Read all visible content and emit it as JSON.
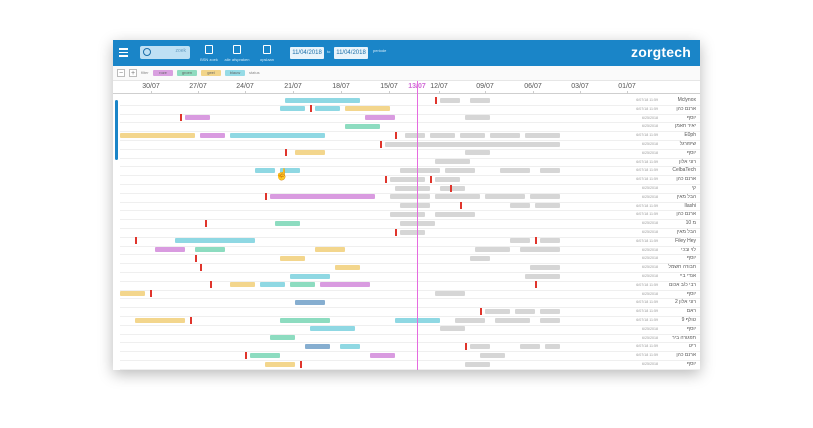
{
  "header": {
    "logo": "zorgtech",
    "search_placeholder": "zoek",
    "buttons": [
      {
        "label": "BSN zoek",
        "icon": "export-icon"
      },
      {
        "label": "alle afspraken",
        "icon": "expand-icon"
      },
      {
        "label": "opslaan",
        "icon": "save-icon"
      }
    ],
    "date_from": "11/04/2018",
    "date_sep": "to",
    "date_to": "11/04/2018",
    "date_caption": "periode"
  },
  "legend": {
    "zoom_out": "−",
    "zoom_in": "+",
    "label_left": "filter",
    "label_right": "status",
    "items": [
      {
        "name": "roze",
        "color": "#d9a0e0"
      },
      {
        "name": "groen",
        "color": "#8fdcc0"
      },
      {
        "name": "geel",
        "color": "#f2d58a"
      },
      {
        "name": "blauw",
        "color": "#96dbe6"
      }
    ]
  },
  "axis": {
    "today_index": 7,
    "ticks": [
      "30/07",
      "27/07",
      "24/07",
      "21/07",
      "18/07",
      "15/07",
      "13/07",
      "12/07",
      "09/07",
      "06/07",
      "03/07",
      "01/07"
    ]
  },
  "colors": {
    "blue": "#8fd8e3",
    "pink": "#d99be0",
    "yellow": "#f3d68d",
    "green": "#8ddcc0",
    "gray": "#d6d6d6",
    "navy": "#86aed0"
  },
  "rows": [
    {
      "name": "Mclynox",
      "date": "6/07/18 11:59",
      "bars": [
        [
          "blue",
          0.33,
          0.48
        ],
        [
          "gray",
          0.64,
          0.68
        ],
        [
          "gray",
          0.7,
          0.74
        ]
      ],
      "marks": [
        0.63
      ]
    },
    {
      "name": "ארנם כהן",
      "date": "6/07/18 11:59",
      "bars": [
        [
          "blue",
          0.32,
          0.37
        ],
        [
          "blue",
          0.39,
          0.44
        ],
        [
          "yellow",
          0.45,
          0.54
        ]
      ],
      "marks": [
        0.38
      ]
    },
    {
      "name": "יוסף",
      "date": "6/25/2018",
      "bars": [
        [
          "pink",
          0.13,
          0.18
        ],
        [
          "pink",
          0.49,
          0.55
        ],
        [
          "gray",
          0.69,
          0.74
        ]
      ],
      "marks": [
        0.12
      ]
    },
    {
      "name": "יאיר חאמן",
      "date": "6/25/2018",
      "bars": [
        [
          "green",
          0.45,
          0.52
        ]
      ],
      "marks": []
    },
    {
      "name": "E0ph",
      "date": "6/07/18 11:59",
      "bars": [
        [
          "yellow",
          0.0,
          0.15
        ],
        [
          "pink",
          0.16,
          0.21
        ],
        [
          "blue",
          0.22,
          0.41
        ],
        [
          "gray",
          0.57,
          0.61
        ],
        [
          "gray",
          0.62,
          0.67
        ],
        [
          "gray",
          0.68,
          0.73
        ],
        [
          "gray",
          0.74,
          0.8
        ],
        [
          "gray",
          0.81,
          0.88
        ]
      ],
      "marks": [
        0.55
      ]
    },
    {
      "name": "שיפורגל",
      "date": "6/25/2018",
      "bars": [
        [
          "gray",
          0.53,
          0.88
        ]
      ],
      "marks": [
        0.52
      ]
    },
    {
      "name": "יוסף",
      "date": "6/25/2018",
      "bars": [
        [
          "yellow",
          0.35,
          0.41
        ],
        [
          "gray",
          0.69,
          0.74
        ]
      ],
      "marks": [
        0.33
      ]
    },
    {
      "name": "רוני אלון",
      "date": "6/07/18 11:59",
      "bars": [
        [
          "gray",
          0.63,
          0.7
        ]
      ],
      "marks": []
    },
    {
      "name": "CelbaTech",
      "date": "6/07/18 11:59",
      "bars": [
        [
          "blue",
          0.27,
          0.31
        ],
        [
          "blue",
          0.32,
          0.36
        ],
        [
          "gray",
          0.56,
          0.64
        ],
        [
          "gray",
          0.65,
          0.71
        ],
        [
          "gray",
          0.76,
          0.82
        ],
        [
          "gray",
          0.84,
          0.88
        ]
      ],
      "marks": []
    },
    {
      "name": "ארנם כהן",
      "date": "6/07/18 11:59",
      "bars": [
        [
          "gray",
          0.54,
          0.61
        ],
        [
          "gray",
          0.63,
          0.68
        ]
      ],
      "marks": [
        0.53,
        0.62
      ]
    },
    {
      "name": "קי",
      "date": "6/25/2018",
      "bars": [
        [
          "gray",
          0.55,
          0.62
        ],
        [
          "gray",
          0.64,
          0.69
        ]
      ],
      "marks": [
        0.66
      ]
    },
    {
      "name": "הבל מאין",
      "date": "6/25/2018",
      "bars": [
        [
          "pink",
          0.3,
          0.51
        ],
        [
          "gray",
          0.54,
          0.62
        ],
        [
          "gray",
          0.63,
          0.72
        ],
        [
          "gray",
          0.73,
          0.81
        ],
        [
          "gray",
          0.82,
          0.88
        ]
      ],
      "marks": [
        0.29
      ]
    },
    {
      "name": "Ilashi",
      "date": "6/07/18 11:59",
      "bars": [
        [
          "gray",
          0.56,
          0.62
        ],
        [
          "gray",
          0.78,
          0.82
        ],
        [
          "gray",
          0.83,
          0.88
        ]
      ],
      "marks": [
        0.68
      ]
    },
    {
      "name": "ארנם כהן",
      "date": "6/07/18 11:59",
      "bars": [
        [
          "gray",
          0.54,
          0.61
        ],
        [
          "gray",
          0.63,
          0.71
        ]
      ],
      "marks": []
    },
    {
      "name": "10 מ",
      "date": "6/25/2018",
      "bars": [
        [
          "green",
          0.31,
          0.36
        ],
        [
          "gray",
          0.56,
          0.63
        ]
      ],
      "marks": [
        0.17
      ]
    },
    {
      "name": "הבל מאין",
      "date": "6/25/2018",
      "bars": [
        [
          "gray",
          0.56,
          0.61
        ]
      ],
      "marks": [
        0.55
      ]
    },
    {
      "name": "Filey Hey",
      "date": "6/07/18 11:59",
      "bars": [
        [
          "blue",
          0.11,
          0.27
        ],
        [
          "gray",
          0.78,
          0.82
        ],
        [
          "gray",
          0.84,
          0.88
        ]
      ],
      "marks": [
        0.03,
        0.83
      ]
    },
    {
      "name": "לוי ובכי",
      "date": "6/25/2018",
      "bars": [
        [
          "pink",
          0.07,
          0.13
        ],
        [
          "green",
          0.15,
          0.21
        ],
        [
          "yellow",
          0.39,
          0.45
        ],
        [
          "gray",
          0.71,
          0.78
        ],
        [
          "gray",
          0.8,
          0.88
        ]
      ],
      "marks": []
    },
    {
      "name": "יוסף",
      "date": "6/25/2018",
      "bars": [
        [
          "yellow",
          0.32,
          0.37
        ],
        [
          "gray",
          0.7,
          0.74
        ]
      ],
      "marks": [
        0.15
      ]
    },
    {
      "name": "חבורה חשמל",
      "date": "6/25/2018",
      "bars": [
        [
          "yellow",
          0.43,
          0.48
        ],
        [
          "gray",
          0.82,
          0.88
        ]
      ],
      "marks": [
        0.16
      ]
    },
    {
      "name": "אנדי ביי",
      "date": "6/25/2018",
      "bars": [
        [
          "blue",
          0.34,
          0.42
        ],
        [
          "gray",
          0.81,
          0.88
        ]
      ],
      "marks": []
    },
    {
      "name": "רבי כ/ב אכום",
      "date": "6/07/18 11:59",
      "bars": [
        [
          "yellow",
          0.22,
          0.27
        ],
        [
          "blue",
          0.28,
          0.33
        ],
        [
          "green",
          0.34,
          0.39
        ],
        [
          "pink",
          0.4,
          0.5
        ]
      ],
      "marks": [
        0.18,
        0.83
      ]
    },
    {
      "name": "יוסף",
      "date": "6/25/2018",
      "bars": [
        [
          "yellow",
          0.0,
          0.05
        ],
        [
          "gray",
          0.63,
          0.69
        ]
      ],
      "marks": [
        0.06
      ]
    },
    {
      "name": "רוני אלון 2",
      "date": "6/07/18 11:59",
      "bars": [
        [
          "navy",
          0.35,
          0.41
        ]
      ],
      "marks": []
    },
    {
      "name": "ראם",
      "date": "6/07/18 11:59",
      "bars": [
        [
          "gray",
          0.73,
          0.78
        ],
        [
          "gray",
          0.79,
          0.83
        ],
        [
          "gray",
          0.84,
          0.88
        ]
      ],
      "marks": [
        0.72
      ]
    },
    {
      "name": "טולף 9",
      "date": "6/07/18 11:59",
      "bars": [
        [
          "yellow",
          0.03,
          0.13
        ],
        [
          "green",
          0.32,
          0.42
        ],
        [
          "blue",
          0.55,
          0.64
        ],
        [
          "gray",
          0.67,
          0.73
        ],
        [
          "gray",
          0.75,
          0.82
        ],
        [
          "gray",
          0.84,
          0.88
        ]
      ],
      "marks": [
        0.14
      ]
    },
    {
      "name": "יוסף",
      "date": "6/25/2018",
      "bars": [
        [
          "blue",
          0.38,
          0.47
        ],
        [
          "gray",
          0.64,
          0.69
        ]
      ],
      "marks": []
    },
    {
      "name": "תפגורה ביר",
      "date": "6/25/2018",
      "bars": [
        [
          "green",
          0.3,
          0.35
        ]
      ],
      "marks": []
    },
    {
      "name": "ריט",
      "date": "6/07/18 11:59",
      "bars": [
        [
          "navy",
          0.37,
          0.42
        ],
        [
          "blue",
          0.44,
          0.48
        ],
        [
          "gray",
          0.7,
          0.74
        ],
        [
          "gray",
          0.8,
          0.84
        ],
        [
          "gray",
          0.85,
          0.88
        ]
      ],
      "marks": [
        0.69
      ]
    },
    {
      "name": "ארנם כהן",
      "date": "6/07/18 11:59",
      "bars": [
        [
          "green",
          0.26,
          0.32
        ],
        [
          "pink",
          0.5,
          0.55
        ],
        [
          "gray",
          0.72,
          0.77
        ]
      ],
      "marks": [
        0.25
      ]
    },
    {
      "name": "יוסף",
      "date": "6/25/2018",
      "bars": [
        [
          "yellow",
          0.29,
          0.35
        ],
        [
          "gray",
          0.69,
          0.74
        ]
      ],
      "marks": [
        0.36
      ]
    }
  ]
}
